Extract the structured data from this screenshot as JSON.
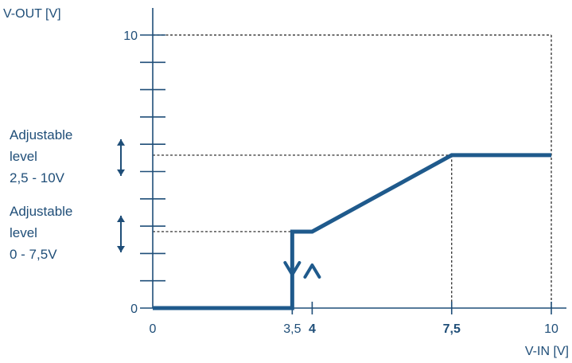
{
  "chart_data": {
    "type": "line",
    "xlabel": "V-IN [V]",
    "ylabel": "V-OUT [V]",
    "xlim": [
      0,
      10
    ],
    "ylim": [
      0,
      10
    ],
    "x_ticks": [
      "0",
      "3,5",
      "4",
      "7,5",
      "10"
    ],
    "x_tick_values": [
      0,
      3.5,
      4,
      7.5,
      10
    ],
    "x_ticks_bold": [
      "4",
      "7,5"
    ],
    "y_ticks": [
      "0",
      "10"
    ],
    "y_tick_values": [
      0,
      10
    ],
    "y_minor_tick_values": [
      1,
      2,
      3,
      4,
      5,
      6,
      7,
      8,
      9
    ],
    "series": [
      {
        "x": [
          0,
          3.5,
          3.5,
          4,
          4,
          7.5,
          10
        ],
        "y": [
          0,
          0,
          2.8,
          2.8,
          2.8,
          5.6,
          5.6
        ]
      }
    ],
    "hysteresis_arrows": [
      {
        "x": 3.5,
        "direction": "down"
      },
      {
        "x": 4,
        "direction": "up"
      }
    ],
    "reference_lines": [
      {
        "from": [
          0,
          2.8
        ],
        "to": [
          3.5,
          2.8
        ]
      },
      {
        "from": [
          0,
          5.6
        ],
        "to": [
          7.5,
          5.6
        ]
      },
      {
        "from": [
          7.5,
          5.6
        ],
        "to": [
          7.5,
          0
        ]
      },
      {
        "from": [
          0,
          10
        ],
        "to": [
          10,
          10
        ]
      },
      {
        "from": [
          10,
          10
        ],
        "to": [
          10,
          0
        ]
      }
    ],
    "annotations": [
      {
        "lines": [
          "Adjustable",
          "level",
          "2,5 - 10V"
        ],
        "y": 5.6
      },
      {
        "lines": [
          "Adjustable",
          "level",
          "0 - 7,5V"
        ],
        "y": 2.8
      }
    ],
    "grid": false,
    "legend": "none"
  },
  "colors": {
    "curve": "#1f5a8c",
    "axis": "#1f4e78",
    "text": "#1f4e78",
    "reference": "#1a1a1a"
  }
}
